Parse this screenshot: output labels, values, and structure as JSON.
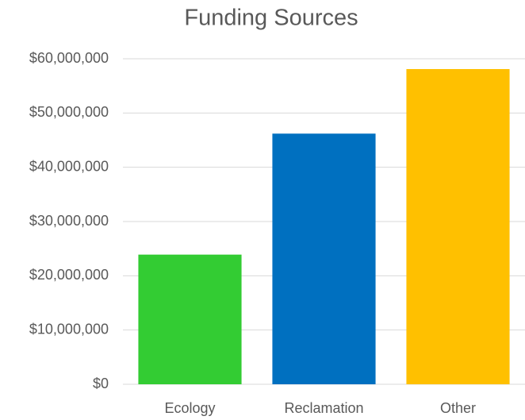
{
  "chart_data": {
    "type": "bar",
    "title": "Funding Sources",
    "categories": [
      "Ecology",
      "Reclamation",
      "Other"
    ],
    "values": [
      23900000,
      46200000,
      58100000
    ],
    "colors": [
      "#33cc33",
      "#0070c0",
      "#ffc000"
    ],
    "ylim": [
      0,
      60000000
    ],
    "yticks": [
      {
        "value": 0,
        "label": "$0"
      },
      {
        "value": 10000000,
        "label": "$10,000,000"
      },
      {
        "value": 20000000,
        "label": "$20,000,000"
      },
      {
        "value": 30000000,
        "label": "$30,000,000"
      },
      {
        "value": 40000000,
        "label": "$40,000,000"
      },
      {
        "value": 50000000,
        "label": "$50,000,000"
      },
      {
        "value": 60000000,
        "label": "$60,000,000"
      }
    ],
    "grid": true
  }
}
